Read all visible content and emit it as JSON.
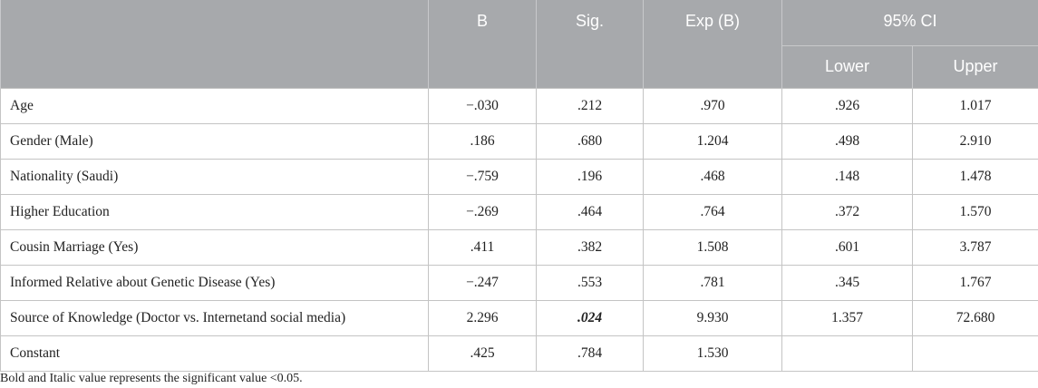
{
  "table": {
    "headers": {
      "label": "",
      "b": "B",
      "sig": "Sig.",
      "exp_b": "Exp (B)",
      "ci": "95% CI",
      "lower": "Lower",
      "upper": "Upper"
    },
    "rows": [
      {
        "label": "Age",
        "b": "−.030",
        "sig": ".212",
        "exp_b": ".970",
        "lower": ".926",
        "upper": "1.017"
      },
      {
        "label": "Gender (Male)",
        "b": ".186",
        "sig": ".680",
        "exp_b": "1.204",
        "lower": ".498",
        "upper": "2.910"
      },
      {
        "label": "Nationality (Saudi)",
        "b": "−.759",
        "sig": ".196",
        "exp_b": ".468",
        "lower": ".148",
        "upper": "1.478"
      },
      {
        "label": "Higher Education",
        "b": "−.269",
        "sig": ".464",
        "exp_b": ".764",
        "lower": ".372",
        "upper": "1.570"
      },
      {
        "label": "Cousin Marriage (Yes)",
        "b": ".411",
        "sig": ".382",
        "exp_b": "1.508",
        "lower": ".601",
        "upper": "3.787"
      },
      {
        "label": "Informed Relative about Genetic Disease (Yes)",
        "b": "−.247",
        "sig": ".553",
        "exp_b": ".781",
        "lower": ".345",
        "upper": "1.767"
      },
      {
        "label": "Source of Knowledge (Doctor vs. Internetand social media)",
        "b": "2.296",
        "sig": ".024",
        "exp_b": "9.930",
        "lower": "1.357",
        "upper": "72.680"
      },
      {
        "label": "Constant",
        "b": ".425",
        "sig": ".784",
        "exp_b": "1.530",
        "lower": "",
        "upper": ""
      }
    ]
  },
  "footnote": "Bold and Italic value represents the significant value <0.05.",
  "colors": {
    "header_bg": "#a7a9ac",
    "header_text": "#ffffff",
    "grid": "#c4c4c4"
  }
}
